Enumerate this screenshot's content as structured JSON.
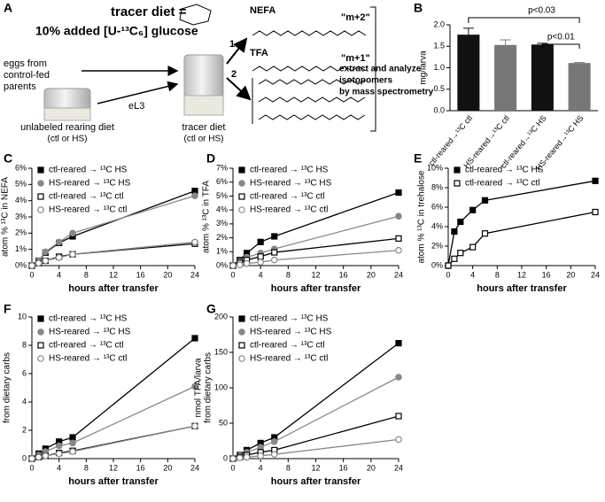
{
  "diagram": {
    "panel": "A",
    "title_lines": [
      "tracer diet =",
      "10% added [U-¹³C₆] glucose"
    ],
    "products": [
      {
        "name": "NEFA",
        "isotopomer": "\"m+2\""
      },
      {
        "name": "TFA",
        "isotopomer": "\"m+1\""
      }
    ],
    "routes": [
      "1",
      "2"
    ],
    "source": [
      "eggs from",
      "control-fed",
      "parents"
    ],
    "stage": "eL3",
    "rearing": [
      "unlabeled rearing diet",
      "(ctl or HS)"
    ],
    "tracer": [
      "tracer diet",
      "(ctl or HS)"
    ],
    "analysis": [
      "extract and analyze",
      "isotopomers",
      "by mass spectrometry"
    ]
  },
  "chart_data": [
    {
      "panel": "B",
      "type": "bar",
      "ylabel": "mg/larva",
      "categories": [
        "ctl-reared→¹³C ctl",
        "HS-reared→¹³C ctl",
        "ctl-reared→¹³C HS",
        "HS-reared→¹³C HS"
      ],
      "values": [
        1.77,
        1.53,
        1.54,
        1.11
      ],
      "errors": [
        0.15,
        0.12,
        0.03,
        0.01
      ],
      "colors": [
        "#111111",
        "#777777",
        "#111111",
        "#777777"
      ],
      "ylim": [
        0,
        2
      ],
      "yticks": [
        {
          "value": 0,
          "label": "0.0"
        },
        0.5,
        {
          "value": 1,
          "label": "1.0"
        },
        1.5,
        {
          "value": 2,
          "label": "2.0"
        }
      ],
      "annotations": [
        "p<0.03",
        "p<0.01"
      ]
    },
    {
      "panel": "C",
      "type": "line",
      "xlabel": "hours after transfer",
      "ylabel": "atom % ¹³C in NEFA",
      "x": [
        0,
        1,
        2,
        4,
        6,
        24
      ],
      "xlim": [
        0,
        24
      ],
      "xticks": [
        0,
        4,
        8,
        12,
        16,
        20,
        24
      ],
      "ylim": [
        0,
        6
      ],
      "yticks": [
        {
          "value": 0,
          "label": "0%"
        },
        {
          "value": 1,
          "label": "1%"
        },
        {
          "value": 2,
          "label": "2%"
        },
        {
          "value": 3,
          "label": "3%"
        },
        {
          "value": 4,
          "label": "4%"
        },
        {
          "value": 5,
          "label": "5%"
        },
        {
          "value": 6,
          "label": "6%"
        }
      ],
      "series": [
        {
          "name": "ctl-reared → ¹³C HS",
          "color": "#000000",
          "marker": "square",
          "filled": true,
          "values": [
            0,
            0.3,
            0.8,
            1.4,
            1.8,
            4.6
          ]
        },
        {
          "name": "HS-reared → ¹³C HS",
          "color": "#888888",
          "marker": "circle",
          "filled": true,
          "values": [
            0,
            0.3,
            0.85,
            1.45,
            2.0,
            4.3
          ]
        },
        {
          "name": "ctl-reared → ¹³C ctl",
          "color": "#000000",
          "marker": "square",
          "filled": false,
          "values": [
            0,
            0.15,
            0.3,
            0.55,
            0.7,
            1.35
          ]
        },
        {
          "name": "HS-reared → ¹³C ctl",
          "color": "#888888",
          "marker": "circle",
          "filled": false,
          "values": [
            0,
            0.15,
            0.3,
            0.5,
            0.7,
            1.45
          ]
        }
      ]
    },
    {
      "panel": "D",
      "type": "line",
      "xlabel": "hours after transfer",
      "ylabel": "atom % ¹³C in TFA",
      "x": [
        0,
        1,
        2,
        4,
        6,
        24
      ],
      "xlim": [
        0,
        24
      ],
      "xticks": [
        0,
        4,
        8,
        12,
        16,
        20,
        24
      ],
      "ylim": [
        0,
        7
      ],
      "yticks": [
        {
          "value": 0,
          "label": "0%"
        },
        {
          "value": 1,
          "label": "1%"
        },
        {
          "value": 2,
          "label": "2%"
        },
        {
          "value": 3,
          "label": "3%"
        },
        {
          "value": 4,
          "label": "4%"
        },
        {
          "value": 5,
          "label": "5%"
        },
        {
          "value": 6,
          "label": "6%"
        },
        {
          "value": 7,
          "label": "7%"
        }
      ],
      "series": [
        {
          "name": "ctl-reared → ¹³C HS",
          "color": "#000000",
          "marker": "square",
          "filled": true,
          "values": [
            0,
            0.4,
            0.9,
            1.7,
            2.1,
            5.25
          ]
        },
        {
          "name": "HS-reared → ¹³C HS",
          "color": "#888888",
          "marker": "circle",
          "filled": true,
          "values": [
            0,
            0.3,
            0.6,
            0.9,
            1.2,
            3.55
          ]
        },
        {
          "name": "ctl-reared → ¹³C ctl",
          "color": "#000000",
          "marker": "square",
          "filled": false,
          "values": [
            0,
            0.2,
            0.4,
            0.65,
            0.95,
            1.95
          ]
        },
        {
          "name": "HS-reared → ¹³C ctl",
          "color": "#888888",
          "marker": "circle",
          "filled": false,
          "values": [
            0,
            0.05,
            0.15,
            0.25,
            0.4,
            1.1
          ]
        }
      ]
    },
    {
      "panel": "E",
      "type": "line",
      "xlabel": "hours after transfer",
      "ylabel": "atom % ¹³C in trehalose",
      "x": [
        0,
        1,
        2,
        4,
        6,
        24
      ],
      "xlim": [
        0,
        24
      ],
      "xticks": [
        0,
        4,
        8,
        12,
        16,
        20,
        24
      ],
      "ylim": [
        0,
        10
      ],
      "yticks": [
        {
          "value": 0,
          "label": "0%"
        },
        {
          "value": 2,
          "label": "2%"
        },
        {
          "value": 4,
          "label": "4%"
        },
        {
          "value": 6,
          "label": "6%"
        },
        {
          "value": 8,
          "label": "8%"
        },
        {
          "value": 10,
          "label": "10%"
        }
      ],
      "series": [
        {
          "name": "ctl-reared → ¹³C HS",
          "color": "#000000",
          "marker": "square",
          "filled": true,
          "values": [
            0,
            3.5,
            4.5,
            5.7,
            6.7,
            8.7
          ]
        },
        {
          "name": "ctl-reared → ¹³C ctl",
          "color": "#000000",
          "marker": "square",
          "filled": false,
          "values": [
            0,
            0.7,
            1.3,
            1.9,
            3.3,
            5.5
          ]
        }
      ]
    },
    {
      "panel": "F",
      "type": "line",
      "xlabel": "hours after transfer",
      "ylabel": [
        "nmol NEFA/larva",
        "from dietary carbs"
      ],
      "x": [
        0,
        1,
        2,
        4,
        6,
        24
      ],
      "xlim": [
        0,
        24
      ],
      "xticks": [
        0,
        4,
        8,
        12,
        16,
        20,
        24
      ],
      "ylim": [
        0,
        10
      ],
      "yticks": [
        0,
        2,
        4,
        6,
        8,
        10
      ],
      "series": [
        {
          "name": "ctl-reared → ¹³C HS",
          "color": "#000000",
          "marker": "square",
          "filled": true,
          "values": [
            0,
            0.35,
            0.7,
            1.2,
            1.5,
            8.5
          ]
        },
        {
          "name": "HS-reared → ¹³C HS",
          "color": "#888888",
          "marker": "circle",
          "filled": true,
          "values": [
            0,
            0.25,
            0.5,
            0.9,
            1.1,
            5.1
          ]
        },
        {
          "name": "ctl-reared → ¹³C ctl",
          "color": "#000000",
          "marker": "square",
          "filled": false,
          "values": [
            0,
            0.1,
            0.2,
            0.4,
            0.55,
            2.3
          ]
        },
        {
          "name": "HS-reared → ¹³C ctl",
          "color": "#888888",
          "marker": "circle",
          "filled": false,
          "values": [
            0,
            0.1,
            0.2,
            0.35,
            0.5,
            2.3
          ]
        }
      ]
    },
    {
      "panel": "G",
      "type": "line",
      "xlabel": "hours after transfer",
      "ylabel": [
        "nmol TFA/larva",
        "from dietary carbs"
      ],
      "x": [
        0,
        1,
        2,
        4,
        6,
        24
      ],
      "xlim": [
        0,
        24
      ],
      "xticks": [
        0,
        4,
        8,
        12,
        16,
        20,
        24
      ],
      "ylim": [
        0,
        200
      ],
      "yticks": [
        0,
        50,
        100,
        150,
        200
      ],
      "series": [
        {
          "name": "ctl-reared → ¹³C HS",
          "color": "#000000",
          "marker": "square",
          "filled": true,
          "values": [
            0,
            5,
            12,
            22,
            30,
            163
          ]
        },
        {
          "name": "HS-reared → ¹³C HS",
          "color": "#888888",
          "marker": "circle",
          "filled": true,
          "values": [
            0,
            4,
            9,
            16,
            24,
            115
          ]
        },
        {
          "name": "ctl-reared → ¹³C ctl",
          "color": "#000000",
          "marker": "square",
          "filled": false,
          "values": [
            0,
            2,
            5,
            9,
            12,
            60
          ]
        },
        {
          "name": "HS-reared → ¹³C ctl",
          "color": "#888888",
          "marker": "circle",
          "filled": false,
          "values": [
            0,
            1,
            2,
            4,
            6,
            27
          ]
        }
      ]
    }
  ]
}
